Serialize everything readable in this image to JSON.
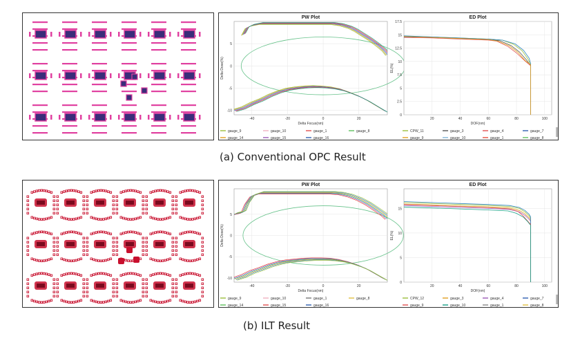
{
  "captions": {
    "a": "(a)  Conventional OPC Result",
    "b": "(b)   ILT Result"
  },
  "colors": {
    "layout_a_mark": "#e040a0",
    "layout_b_mark": "#c8102e",
    "pad_fill": "#3a2d7a",
    "ellipse": "#66c28a"
  },
  "chart_data": [
    {
      "id": "a-pw",
      "type": "line",
      "title": "PW Plot",
      "xlabel": "Delta Focus(nm)",
      "ylabel": "Delta Dose(%)",
      "xlim": [
        -50,
        36
      ],
      "ylim": [
        -11,
        10
      ],
      "xticks": [
        -40,
        -20,
        0,
        20
      ],
      "yticks": [
        -10,
        -5,
        0,
        5
      ],
      "ellipse": {
        "cx": 0,
        "cy": 0,
        "rx": 46,
        "ry": 6.5
      },
      "envelope": {
        "top_x": [
          -45,
          -43,
          -40,
          -35,
          -30,
          -25,
          -20,
          -15,
          -10,
          -5,
          0,
          5,
          10,
          15,
          18,
          22,
          26,
          30,
          34,
          36
        ],
        "top_y": [
          7,
          8.5,
          9.1,
          9.5,
          9.5,
          9.5,
          9.5,
          9.5,
          9.5,
          9.5,
          9.5,
          9.5,
          9.2,
          8.6,
          8,
          7,
          6,
          4.8,
          3.5,
          2.5
        ],
        "bottom_x": [
          -50,
          -45,
          -40,
          -35,
          -30,
          -25,
          -20,
          -15,
          -10,
          -5,
          0,
          5,
          10,
          15,
          20,
          25,
          30,
          35
        ],
        "bottom_y": [
          -10,
          -9.4,
          -8.4,
          -7.6,
          -6.6,
          -5.8,
          -5.2,
          -4.9,
          -4.7,
          -4.6,
          -4.7,
          -4.9,
          -5.3,
          -6,
          -6.8,
          -7.8,
          -9,
          -10.2
        ],
        "offsets": [
          -0.6,
          -0.3,
          0,
          0.3,
          0.6,
          0.9
        ],
        "colors": [
          "#9bbf3c",
          "#e0a020",
          "#2e86c1",
          "#8e44ad",
          "#e74c3c",
          "#16a085"
        ]
      },
      "legend": [
        {
          "name": "gauge_9",
          "color": "#9bbf3c"
        },
        {
          "name": "gauge_10",
          "color": "#f0b0c0"
        },
        {
          "name": "gauge_1",
          "color": "#e05050"
        },
        {
          "name": "gauge_8",
          "color": "#5cc05c"
        },
        {
          "name": "gauge_14",
          "color": "#e0a020"
        },
        {
          "name": "gauge_15",
          "color": "#9b59b6"
        },
        {
          "name": "gauge_16",
          "color": "#2e5fb0"
        }
      ]
    },
    {
      "id": "a-ed",
      "type": "line",
      "title": "ED Plot",
      "xlabel": "DOF(nm)",
      "ylabel": "EL(%)",
      "xlim": [
        0,
        105
      ],
      "ylim": [
        0,
        17.5
      ],
      "xticks": [
        20,
        40,
        60,
        80,
        100
      ],
      "yticks": [
        0,
        2.5,
        5,
        7.5,
        10,
        12.5,
        15,
        17.5
      ],
      "series": [
        {
          "name": "CPW_11",
          "color": "#9bbf3c",
          "x": [
            0,
            20,
            40,
            60,
            70,
            78,
            84,
            88,
            90,
            90
          ],
          "y": [
            14.7,
            14.6,
            14.4,
            14.2,
            14.0,
            13.2,
            12,
            10.5,
            9.5,
            0
          ]
        },
        {
          "name": "gauge_3",
          "color": "#555555",
          "x": [
            0,
            20,
            40,
            60,
            68,
            76,
            82,
            87,
            90,
            90
          ],
          "y": [
            14.6,
            14.5,
            14.3,
            14.1,
            13.9,
            13.0,
            11.8,
            10.3,
            9.3,
            0
          ]
        },
        {
          "name": "gauge_4",
          "color": "#e05050",
          "x": [
            0,
            20,
            40,
            60,
            66,
            74,
            80,
            86,
            90,
            90
          ],
          "y": [
            14.5,
            14.4,
            14.2,
            14.0,
            13.8,
            12.8,
            11.6,
            10.1,
            9.2,
            0
          ]
        },
        {
          "name": "gauge_7",
          "color": "#2e86c1",
          "x": [
            0,
            20,
            40,
            60,
            70,
            79,
            85,
            89,
            90,
            90
          ],
          "y": [
            14.8,
            14.6,
            14.4,
            14.2,
            14.0,
            13.3,
            12.1,
            10.6,
            9.6,
            0
          ]
        },
        {
          "name": "gauge_9",
          "color": "#e0a020",
          "x": [
            0,
            20,
            40,
            60,
            67,
            75,
            81,
            86,
            90,
            90
          ],
          "y": [
            14.7,
            14.5,
            14.3,
            14.1,
            13.8,
            12.9,
            11.7,
            10.2,
            9.4,
            0
          ]
        }
      ],
      "legend": [
        {
          "name": "CPW_11",
          "color": "#9bbf3c"
        },
        {
          "name": "gauge_3",
          "color": "#555555"
        },
        {
          "name": "gauge_4",
          "color": "#e05050"
        },
        {
          "name": "gauge_7",
          "color": "#2e5fb0"
        },
        {
          "name": "gauge_9",
          "color": "#e0a020"
        },
        {
          "name": "gauge_10",
          "color": "#7fb3d5"
        },
        {
          "name": "gauge_1",
          "color": "#e74c3c"
        },
        {
          "name": "gauge_8",
          "color": "#5cc05c"
        }
      ]
    },
    {
      "id": "b-pw",
      "type": "line",
      "title": "PW Plot",
      "xlabel": "Delta Focus(nm)",
      "ylabel": "Delta Dose(%)",
      "xlim": [
        -50,
        36
      ],
      "ylim": [
        -11,
        11
      ],
      "xticks": [
        -40,
        -20,
        0,
        20
      ],
      "yticks": [
        -10,
        -5,
        0,
        5
      ],
      "ellipse": {
        "cx": 0,
        "cy": 0,
        "rx": 45,
        "ry": 7.0
      },
      "envelope": {
        "top_x": [
          -50,
          -45,
          -43,
          -40,
          -35,
          -30,
          -25,
          -20,
          -15,
          -10,
          -5,
          0,
          5,
          10,
          15,
          20,
          25,
          30,
          34,
          36
        ],
        "top_y": [
          5,
          5.5,
          7.5,
          9.3,
          10,
          10,
          10,
          10,
          10,
          10,
          10,
          10,
          10,
          9.8,
          9.3,
          8.5,
          7.4,
          6,
          4.8,
          4
        ],
        "bottom_x": [
          -50,
          -45,
          -40,
          -35,
          -30,
          -25,
          -20,
          -15,
          -10,
          -5,
          0,
          5,
          10,
          15,
          20,
          25,
          30,
          35
        ],
        "bottom_y": [
          -10.2,
          -9.5,
          -8.5,
          -7.8,
          -7.0,
          -6.4,
          -6.0,
          -5.8,
          -5.6,
          -5.5,
          -5.5,
          -5.6,
          -5.9,
          -6.4,
          -7.1,
          -8,
          -9.2,
          -10.4
        ],
        "offsets": [
          -0.8,
          -0.4,
          0,
          0.4,
          0.8,
          1.2
        ],
        "colors": [
          "#e74c3c",
          "#9b59b6",
          "#16a085",
          "#e0a020",
          "#2e86c1",
          "#9bbf3c"
        ]
      },
      "legend": [
        {
          "name": "gauge_9",
          "color": "#9bbf3c"
        },
        {
          "name": "gauge_10",
          "color": "#f0b0c0"
        },
        {
          "name": "gauge_1",
          "color": "#777777"
        },
        {
          "name": "gauge_8",
          "color": "#e0c040"
        },
        {
          "name": "gauge_14",
          "color": "#5cc05c"
        },
        {
          "name": "gauge_15",
          "color": "#e05050"
        },
        {
          "name": "gauge_16",
          "color": "#2e5fb0"
        }
      ]
    },
    {
      "id": "b-ed",
      "type": "line",
      "title": "ED Plot",
      "xlabel": "DOF(nm)",
      "ylabel": "EL(%)",
      "xlim": [
        0,
        105
      ],
      "ylim": [
        0,
        19
      ],
      "xticks": [
        20,
        40,
        60,
        80,
        100
      ],
      "yticks": [
        0,
        5,
        10,
        15
      ],
      "series": [
        {
          "name": "CPW_12",
          "color": "#9bbf3c",
          "x": [
            0,
            20,
            40,
            60,
            75,
            82,
            86,
            89,
            90,
            90
          ],
          "y": [
            16.2,
            16.0,
            15.8,
            15.6,
            15.4,
            15.0,
            14.3,
            13.5,
            13.0,
            0
          ]
        },
        {
          "name": "gauge_3",
          "color": "#e0a020",
          "x": [
            0,
            20,
            40,
            60,
            75,
            82,
            86,
            89,
            90,
            90
          ],
          "y": [
            15.9,
            15.7,
            15.5,
            15.3,
            15.1,
            14.6,
            13.9,
            13.1,
            12.7,
            0
          ]
        },
        {
          "name": "gauge_4",
          "color": "#9b59b6",
          "x": [
            0,
            20,
            40,
            60,
            75,
            82,
            86,
            89,
            90,
            90
          ],
          "y": [
            15.6,
            15.4,
            15.2,
            15.0,
            14.8,
            14.3,
            13.6,
            12.8,
            12.4,
            0
          ]
        },
        {
          "name": "gauge_7",
          "color": "#2e86c1",
          "x": [
            0,
            20,
            40,
            60,
            75,
            82,
            86,
            89,
            90,
            90
          ],
          "y": [
            16.4,
            16.2,
            16.0,
            15.8,
            15.6,
            15.2,
            14.6,
            13.8,
            13.3,
            0
          ]
        },
        {
          "name": "gauge_9",
          "color": "#e05050",
          "x": [
            0,
            20,
            40,
            60,
            75,
            81,
            85,
            88,
            90,
            90
          ],
          "y": [
            15.8,
            15.6,
            15.4,
            15.2,
            14.9,
            14.4,
            13.4,
            12.4,
            11.8,
            0
          ]
        },
        {
          "name": "gauge_10",
          "color": "#16a085",
          "x": [
            0,
            20,
            40,
            60,
            74,
            80,
            85,
            88,
            90,
            90
          ],
          "y": [
            15.3,
            15.1,
            14.9,
            14.7,
            14.5,
            14.0,
            13.2,
            12.3,
            11.6,
            0
          ]
        }
      ],
      "legend": [
        {
          "name": "CPW_12",
          "color": "#9bbf3c"
        },
        {
          "name": "gauge_3",
          "color": "#e0a020"
        },
        {
          "name": "gauge_4",
          "color": "#9b59b6"
        },
        {
          "name": "gauge_7",
          "color": "#2e5fb0"
        },
        {
          "name": "gauge_9",
          "color": "#e05050"
        },
        {
          "name": "gauge_10",
          "color": "#16a085"
        },
        {
          "name": "gauge_1",
          "color": "#888888"
        },
        {
          "name": "gauge_8",
          "color": "#e0c040"
        }
      ]
    }
  ]
}
